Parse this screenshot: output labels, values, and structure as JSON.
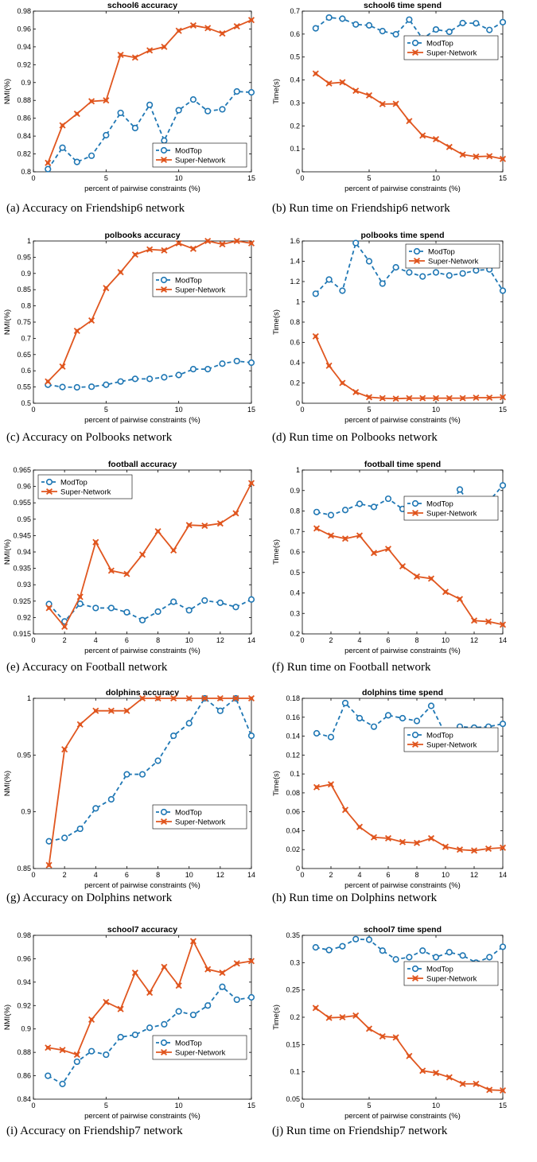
{
  "colors": {
    "modtop": "#1f77b4",
    "supernet": "#e0561f",
    "axis": "#000000"
  },
  "chart_data": [
    {
      "type": "line",
      "title": "school6 accuracy",
      "caption": "(a) Accuracy on Friendship6 network",
      "xlabel": "percent of pairwise constraints (%)",
      "ylabel": "NMI(%)",
      "xlim": [
        0,
        15
      ],
      "ylim": [
        0.8,
        0.98
      ],
      "xticks": [
        0,
        5,
        10,
        15
      ],
      "xtick_labels": [
        "0",
        "5",
        "10",
        "15"
      ],
      "yticks": [
        0.8,
        0.82,
        0.84,
        0.86,
        0.88,
        0.9,
        0.92,
        0.94,
        0.96,
        0.98
      ],
      "ytick_labels": [
        "0.8",
        "0.82",
        "0.84",
        "0.86",
        "0.88",
        "0.9",
        "0.92",
        "0.94",
        "0.96",
        "0.98"
      ],
      "legend_position": "bottom-right",
      "x": [
        1,
        2,
        3,
        4,
        5,
        6,
        7,
        8,
        9,
        10,
        11,
        12,
        13,
        14,
        15
      ],
      "series": [
        {
          "name": "ModTop",
          "values": [
            0.803,
            0.827,
            0.811,
            0.818,
            0.841,
            0.866,
            0.849,
            0.875,
            0.835,
            0.869,
            0.881,
            0.868,
            0.87,
            0.89,
            0.889
          ]
        },
        {
          "name": "Super-Network",
          "values": [
            0.81,
            0.852,
            0.865,
            0.879,
            0.88,
            0.931,
            0.928,
            0.936,
            0.94,
            0.958,
            0.964,
            0.961,
            0.955,
            0.963,
            0.97
          ]
        }
      ]
    },
    {
      "type": "line",
      "title": "school6 time spend",
      "caption": "(b) Run time on Friendship6 network",
      "xlabel": "percent of pairwise constraints (%)",
      "ylabel": "Time(s)",
      "xlim": [
        0,
        15
      ],
      "ylim": [
        0,
        0.7
      ],
      "xticks": [
        0,
        5,
        10,
        15
      ],
      "xtick_labels": [
        "0",
        "5",
        "10",
        "15"
      ],
      "yticks": [
        0,
        0.1,
        0.2,
        0.3,
        0.4,
        0.5,
        0.6,
        0.7
      ],
      "ytick_labels": [
        "0",
        "0.1",
        "0.2",
        "0.3",
        "0.4",
        "0.5",
        "0.6",
        "0.7"
      ],
      "legend_position": "middle-right",
      "x": [
        1,
        2,
        3,
        4,
        5,
        6,
        7,
        8,
        9,
        10,
        11,
        12,
        13,
        14,
        15
      ],
      "series": [
        {
          "name": "ModTop",
          "values": [
            0.625,
            0.672,
            0.667,
            0.642,
            0.638,
            0.613,
            0.599,
            0.663,
            0.58,
            0.62,
            0.61,
            0.648,
            0.647,
            0.618,
            0.652
          ]
        },
        {
          "name": "Super-Network",
          "values": [
            0.428,
            0.385,
            0.39,
            0.353,
            0.333,
            0.295,
            0.296,
            0.221,
            0.158,
            0.142,
            0.108,
            0.075,
            0.066,
            0.068,
            0.056
          ]
        }
      ]
    },
    {
      "type": "line",
      "title": "polbooks accuracy",
      "caption": "(c) Accuracy on Polbooks network",
      "xlabel": "percent of pairwise constraints (%)",
      "ylabel": "NMI(%)",
      "xlim": [
        0,
        15
      ],
      "ylim": [
        0.5,
        1
      ],
      "xticks": [
        0,
        5,
        10,
        15
      ],
      "xtick_labels": [
        "0",
        "5",
        "10",
        "15"
      ],
      "yticks": [
        0.5,
        0.55,
        0.6,
        0.65,
        0.7,
        0.75,
        0.8,
        0.85,
        0.9,
        0.95,
        1
      ],
      "ytick_labels": [
        "0.5",
        "0.55",
        "0.6",
        "0.65",
        "0.7",
        "0.75",
        "0.8",
        "0.85",
        "0.9",
        "0.95",
        "1"
      ],
      "legend_position": "upper-right",
      "x": [
        1,
        2,
        3,
        4,
        5,
        6,
        7,
        8,
        9,
        10,
        11,
        12,
        13,
        14,
        15
      ],
      "series": [
        {
          "name": "ModTop",
          "values": [
            0.557,
            0.55,
            0.549,
            0.551,
            0.557,
            0.567,
            0.575,
            0.575,
            0.58,
            0.587,
            0.605,
            0.605,
            0.622,
            0.63,
            0.625
          ]
        },
        {
          "name": "Super-Network",
          "values": [
            0.567,
            0.613,
            0.723,
            0.755,
            0.855,
            0.904,
            0.958,
            0.974,
            0.971,
            0.993,
            0.976,
            1.0,
            0.99,
            1.0,
            0.993
          ]
        }
      ]
    },
    {
      "type": "line",
      "title": "polbooks time spend",
      "caption": "(d) Run time on Polbooks network",
      "xlabel": "percent of pairwise constraints (%)",
      "ylabel": "Time(s)",
      "xlim": [
        0,
        15
      ],
      "ylim": [
        0,
        1.6
      ],
      "xticks": [
        0,
        5,
        10,
        15
      ],
      "xtick_labels": [
        "0",
        "5",
        "10",
        "15"
      ],
      "yticks": [
        0,
        0.2,
        0.4,
        0.6,
        0.8,
        1,
        1.2,
        1.4,
        1.6
      ],
      "ytick_labels": [
        "0",
        "0.2",
        "0.4",
        "0.6",
        "0.8",
        "1",
        "1.2",
        "1.4",
        "1.6"
      ],
      "legend_position": "top-right",
      "x": [
        1,
        2,
        3,
        4,
        5,
        6,
        7,
        8,
        9,
        10,
        11,
        12,
        13,
        14,
        15
      ],
      "series": [
        {
          "name": "ModTop",
          "values": [
            1.08,
            1.22,
            1.11,
            1.58,
            1.4,
            1.18,
            1.34,
            1.29,
            1.25,
            1.29,
            1.26,
            1.28,
            1.31,
            1.32,
            1.11
          ]
        },
        {
          "name": "Super-Network",
          "values": [
            0.66,
            0.37,
            0.2,
            0.11,
            0.06,
            0.05,
            0.045,
            0.05,
            0.05,
            0.05,
            0.05,
            0.05,
            0.055,
            0.055,
            0.06
          ]
        }
      ]
    },
    {
      "type": "line",
      "title": "football accuracy",
      "caption": "(e) Accuracy on Football network",
      "xlabel": "percent of pairwise constraints (%)",
      "ylabel": "NMI(%)",
      "xlim": [
        0,
        14
      ],
      "ylim": [
        0.915,
        0.965
      ],
      "xticks": [
        0,
        2,
        4,
        6,
        8,
        10,
        12,
        14
      ],
      "xtick_labels": [
        "0",
        "2",
        "4",
        "6",
        "8",
        "10",
        "12",
        "14"
      ],
      "yticks": [
        0.915,
        0.92,
        0.925,
        0.93,
        0.935,
        0.94,
        0.945,
        0.95,
        0.955,
        0.96,
        0.965
      ],
      "ytick_labels": [
        "0.915",
        "0.92",
        "0.925",
        "0.93",
        "0.935",
        "0.94",
        "0.945",
        "0.95",
        "0.955",
        "0.96",
        "0.965"
      ],
      "legend_position": "top-left",
      "x": [
        1,
        2,
        3,
        4,
        5,
        6,
        7,
        8,
        9,
        10,
        11,
        12,
        13,
        14
      ],
      "series": [
        {
          "name": "ModTop",
          "values": [
            0.9241,
            0.9188,
            0.9242,
            0.9229,
            0.9229,
            0.9216,
            0.9192,
            0.9218,
            0.9248,
            0.9222,
            0.9252,
            0.9245,
            0.9232,
            0.9255
          ]
        },
        {
          "name": "Super-Network",
          "values": [
            0.9229,
            0.9172,
            0.9263,
            0.943,
            0.9343,
            0.9333,
            0.9392,
            0.9463,
            0.9405,
            0.9482,
            0.948,
            0.9487,
            0.9518,
            0.961
          ]
        }
      ]
    },
    {
      "type": "line",
      "title": "football time spend",
      "caption": "(f) Run time on Football network",
      "xlabel": "percent of pairwise constraints (%)",
      "ylabel": "Time(s)",
      "xlim": [
        0,
        14
      ],
      "ylim": [
        0.2,
        1
      ],
      "xticks": [
        0,
        2,
        4,
        6,
        8,
        10,
        12,
        14
      ],
      "xtick_labels": [
        "0",
        "2",
        "4",
        "6",
        "8",
        "10",
        "12",
        "14"
      ],
      "yticks": [
        0.2,
        0.3,
        0.4,
        0.5,
        0.6,
        0.7,
        0.8,
        0.9,
        1
      ],
      "ytick_labels": [
        "0.2",
        "0.3",
        "0.4",
        "0.5",
        "0.6",
        "0.7",
        "0.8",
        "0.9",
        "1"
      ],
      "legend_position": "middle-right",
      "x": [
        1,
        2,
        3,
        4,
        5,
        6,
        7,
        8,
        9,
        10,
        11,
        12,
        13,
        14
      ],
      "series": [
        {
          "name": "ModTop",
          "values": [
            0.795,
            0.78,
            0.805,
            0.835,
            0.82,
            0.86,
            0.81,
            0.8,
            0.78,
            0.78,
            0.905,
            0.8,
            0.845,
            0.925
          ]
        },
        {
          "name": "Super-Network",
          "values": [
            0.715,
            0.68,
            0.665,
            0.68,
            0.595,
            0.615,
            0.53,
            0.48,
            0.47,
            0.405,
            0.37,
            0.265,
            0.26,
            0.245
          ]
        }
      ]
    },
    {
      "type": "line",
      "title": "dolphins accuracy",
      "caption": "(g) Accuracy on Dolphins network",
      "xlabel": "percent of pairwise constraints (%)",
      "ylabel": "NMI(%)",
      "xlim": [
        0,
        14
      ],
      "ylim": [
        0.85,
        1
      ],
      "xticks": [
        0,
        2,
        4,
        6,
        8,
        10,
        12,
        14
      ],
      "xtick_labels": [
        "0",
        "2",
        "4",
        "6",
        "8",
        "10",
        "12",
        "14"
      ],
      "yticks": [
        0.85,
        0.9,
        0.95,
        1
      ],
      "ytick_labels": [
        "0.85",
        "0.9",
        "0.95",
        "1"
      ],
      "legend_position": "lower-right",
      "x": [
        1,
        2,
        3,
        4,
        5,
        6,
        7,
        8,
        9,
        10,
        11,
        12,
        13,
        14
      ],
      "series": [
        {
          "name": "ModTop",
          "values": [
            0.874,
            0.877,
            0.885,
            0.903,
            0.911,
            0.933,
            0.933,
            0.945,
            0.967,
            0.978,
            1.0,
            0.989,
            1.0,
            0.967
          ]
        },
        {
          "name": "Super-Network",
          "values": [
            0.853,
            0.955,
            0.977,
            0.989,
            0.989,
            0.989,
            1.0,
            1.0,
            1.0,
            1.0,
            1.0,
            1.0,
            1.0,
            1.0
          ]
        }
      ]
    },
    {
      "type": "line",
      "title": "dolphins time spend",
      "caption": "(h) Run time on Dolphins network",
      "xlabel": "percent of pairwise constraints (%)",
      "ylabel": "Time(s)",
      "xlim": [
        0,
        14
      ],
      "ylim": [
        0,
        0.18
      ],
      "xticks": [
        0,
        2,
        4,
        6,
        8,
        10,
        12,
        14
      ],
      "xtick_labels": [
        "0",
        "2",
        "4",
        "6",
        "8",
        "10",
        "12",
        "14"
      ],
      "yticks": [
        0,
        0.02,
        0.04,
        0.06,
        0.08,
        0.1,
        0.12,
        0.14,
        0.16,
        0.18
      ],
      "ytick_labels": [
        "0",
        "0.02",
        "0.04",
        "0.06",
        "0.08",
        "0.1",
        "0.12",
        "0.14",
        "0.16",
        "0.18"
      ],
      "legend_position": "middle-right",
      "x": [
        1,
        2,
        3,
        4,
        5,
        6,
        7,
        8,
        9,
        10,
        11,
        12,
        13,
        14
      ],
      "series": [
        {
          "name": "ModTop",
          "values": [
            0.143,
            0.139,
            0.175,
            0.159,
            0.15,
            0.162,
            0.159,
            0.156,
            0.172,
            0.142,
            0.15,
            0.149,
            0.15,
            0.153
          ]
        },
        {
          "name": "Super-Network",
          "values": [
            0.086,
            0.089,
            0.062,
            0.044,
            0.033,
            0.032,
            0.028,
            0.027,
            0.032,
            0.023,
            0.02,
            0.019,
            0.021,
            0.022
          ]
        }
      ]
    },
    {
      "type": "line",
      "title": "school7 accuracy",
      "caption": "(i) Accuracy on Friendship7 network",
      "xlabel": "percent of pairwise constraints (%)",
      "ylabel": "NMI(%)",
      "xlim": [
        0,
        15
      ],
      "ylim": [
        0.84,
        0.98
      ],
      "xticks": [
        0,
        5,
        10,
        15
      ],
      "xtick_labels": [
        "0",
        "5",
        "10",
        "15"
      ],
      "yticks": [
        0.84,
        0.86,
        0.88,
        0.9,
        0.92,
        0.94,
        0.96,
        0.98
      ],
      "ytick_labels": [
        "0.84",
        "0.86",
        "0.88",
        "0.9",
        "0.92",
        "0.94",
        "0.96",
        "0.98"
      ],
      "legend_position": "lower-right",
      "x": [
        1,
        2,
        3,
        4,
        5,
        6,
        7,
        8,
        9,
        10,
        11,
        12,
        13,
        14,
        15
      ],
      "series": [
        {
          "name": "ModTop",
          "values": [
            0.86,
            0.853,
            0.872,
            0.881,
            0.878,
            0.893,
            0.895,
            0.901,
            0.904,
            0.915,
            0.912,
            0.92,
            0.936,
            0.925,
            0.927
          ]
        },
        {
          "name": "Super-Network",
          "values": [
            0.884,
            0.882,
            0.878,
            0.908,
            0.923,
            0.917,
            0.948,
            0.931,
            0.953,
            0.937,
            0.975,
            0.951,
            0.948,
            0.956,
            0.958
          ]
        }
      ]
    },
    {
      "type": "line",
      "title": "school7 time spend",
      "caption": "(j) Run time on Friendship7 network",
      "xlabel": "percent of pairwise constraints (%)",
      "ylabel": "Time(s)",
      "xlim": [
        0,
        15
      ],
      "ylim": [
        0.05,
        0.35
      ],
      "xticks": [
        0,
        5,
        10,
        15
      ],
      "xtick_labels": [
        "0",
        "5",
        "10",
        "15"
      ],
      "yticks": [
        0.05,
        0.1,
        0.15,
        0.2,
        0.25,
        0.3,
        0.35
      ],
      "ytick_labels": [
        "0.05",
        "0.1",
        "0.15",
        "0.2",
        "0.25",
        "0.3",
        "0.35"
      ],
      "legend_position": "middle-right",
      "x": [
        1,
        2,
        3,
        4,
        5,
        6,
        7,
        8,
        9,
        10,
        11,
        12,
        13,
        14,
        15
      ],
      "series": [
        {
          "name": "ModTop",
          "values": [
            0.328,
            0.323,
            0.33,
            0.343,
            0.342,
            0.322,
            0.306,
            0.31,
            0.322,
            0.31,
            0.319,
            0.313,
            0.3,
            0.31,
            0.329
          ]
        },
        {
          "name": "Super-Network",
          "values": [
            0.217,
            0.199,
            0.2,
            0.203,
            0.179,
            0.165,
            0.163,
            0.129,
            0.102,
            0.098,
            0.09,
            0.078,
            0.078,
            0.067,
            0.066
          ]
        }
      ]
    }
  ]
}
